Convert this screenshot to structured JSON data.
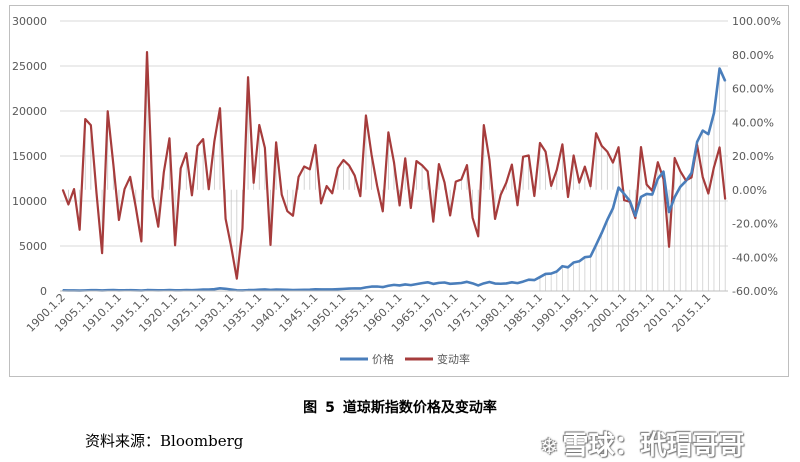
{
  "caption": {
    "figure_label": "图",
    "figure_number": "5",
    "title": "道琼斯指数价格及变动率"
  },
  "source": "资料来源：Bloomberg",
  "watermark": {
    "logo_icon": "snowball-logo-icon",
    "text": "雪球：玳瑁哥哥"
  },
  "chart_data": {
    "type": "line",
    "title": "",
    "xlabel": "",
    "ylabel": "",
    "ylim_left": [
      0,
      30000
    ],
    "ylim_right": [
      -0.6,
      1.0
    ],
    "y_ticks_left": [
      "0",
      "5000",
      "10000",
      "15000",
      "20000",
      "25000",
      "30000"
    ],
    "y_ticks_right": [
      "-60.00%",
      "-40.00%",
      "-20.00%",
      "0.00%",
      "20.00%",
      "40.00%",
      "60.00%",
      "80.00%",
      "100.00%"
    ],
    "x_tick_labels": [
      "1900.1.2",
      "1905.1.1",
      "1910.1.1",
      "1915.1.1",
      "1920.1.1",
      "1925.1.1",
      "1930.1.1",
      "1935.1.1",
      "1940.1.1",
      "1945.1.1",
      "1950.1.1",
      "1955.1.1",
      "1960.1.1",
      "1965.1.1",
      "1970.1.1",
      "1975.1.1",
      "1980.1.1",
      "1985.1.1",
      "1990.1.1",
      "1995.1.1",
      "2000.1.1",
      "2005.1.1",
      "2010.1.1",
      "2015.1.1"
    ],
    "grid": "horizontal",
    "legend_position": "bottom",
    "years": [
      1900,
      1901,
      1902,
      1903,
      1904,
      1905,
      1906,
      1907,
      1908,
      1909,
      1910,
      1911,
      1912,
      1913,
      1914,
      1915,
      1916,
      1917,
      1918,
      1919,
      1920,
      1921,
      1922,
      1923,
      1924,
      1925,
      1926,
      1927,
      1928,
      1929,
      1930,
      1931,
      1932,
      1933,
      1934,
      1935,
      1936,
      1937,
      1938,
      1939,
      1940,
      1941,
      1942,
      1943,
      1944,
      1945,
      1946,
      1947,
      1948,
      1949,
      1950,
      1951,
      1952,
      1953,
      1954,
      1955,
      1956,
      1957,
      1958,
      1959,
      1960,
      1961,
      1962,
      1963,
      1964,
      1965,
      1966,
      1967,
      1968,
      1969,
      1970,
      1971,
      1972,
      1973,
      1974,
      1975,
      1976,
      1977,
      1978,
      1979,
      1980,
      1981,
      1982,
      1983,
      1984,
      1985,
      1986,
      1987,
      1988,
      1989,
      1990,
      1991,
      1992,
      1993,
      1994,
      1995,
      1996,
      1997,
      1998,
      1999,
      2000,
      2001,
      2002,
      2003,
      2004,
      2005,
      2006,
      2007,
      2008,
      2009,
      2010,
      2011,
      2012,
      2013,
      2014,
      2015,
      2016,
      2017,
      2018
    ],
    "series": [
      {
        "name": "价格",
        "axis": "left",
        "color": "#4a7ebb",
        "values": [
          71,
          64,
          65,
          49,
          69,
          96,
          94,
          59,
          86,
          99,
          81,
          82,
          88,
          79,
          54,
          99,
          95,
          74,
          82,
          107,
          72,
          81,
          99,
          96,
          120,
          156,
          157,
          202,
          300,
          248,
          164,
          78,
          60,
          99,
          104,
          144,
          180,
          121,
          155,
          150,
          131,
          111,
          119,
          136,
          152,
          193,
          177,
          181,
          177,
          200,
          235,
          269,
          292,
          281,
          404,
          488,
          500,
          436,
          584,
          679,
          616,
          731,
          652,
          763,
          874,
          969,
          786,
          905,
          944,
          800,
          839,
          890,
          1020,
          851,
          616,
          852,
          1005,
          831,
          805,
          839,
          964,
          875,
          1047,
          1259,
          1212,
          1547,
          1896,
          1939,
          2169,
          2753,
          2634,
          3169,
          3301,
          3754,
          3834,
          5117,
          6448,
          7908,
          9181,
          11497,
          10787,
          10022,
          8342,
          10454,
          10783,
          10718,
          12463,
          13265,
          8776,
          10428,
          11578,
          12218,
          13104,
          16577,
          17823,
          17425,
          19763,
          24719,
          23327
        ]
      },
      {
        "name": "变动率",
        "axis": "right",
        "color": "#a63c3c",
        "values": [
          0.0,
          -0.087,
          0.004,
          -0.237,
          0.419,
          0.382,
          -0.019,
          -0.376,
          0.465,
          0.151,
          -0.179,
          0.004,
          0.076,
          -0.103,
          -0.306,
          0.816,
          -0.042,
          -0.219,
          0.105,
          0.305,
          -0.329,
          0.127,
          0.217,
          -0.033,
          0.26,
          0.3,
          0.003,
          0.287,
          0.483,
          -0.172,
          -0.338,
          -0.527,
          -0.23,
          0.667,
          0.041,
          0.384,
          0.248,
          -0.327,
          0.281,
          -0.029,
          -0.127,
          -0.154,
          0.076,
          0.138,
          0.121,
          0.265,
          -0.081,
          0.022,
          -0.021,
          0.129,
          0.176,
          0.144,
          0.084,
          -0.038,
          0.44,
          0.208,
          0.023,
          -0.128,
          0.34,
          0.162,
          -0.093,
          0.186,
          -0.108,
          0.17,
          0.145,
          0.109,
          -0.189,
          0.152,
          0.043,
          -0.152,
          0.048,
          0.061,
          0.146,
          -0.166,
          -0.276,
          0.383,
          0.177,
          -0.173,
          -0.031,
          0.042,
          0.149,
          -0.092,
          0.196,
          0.203,
          -0.037,
          0.277,
          0.226,
          0.023,
          0.118,
          0.269,
          -0.043,
          0.203,
          0.042,
          0.137,
          0.021,
          0.335,
          0.26,
          0.226,
          0.161,
          0.252,
          -0.062,
          -0.071,
          -0.168,
          0.253,
          0.031,
          -0.006,
          0.163,
          0.064,
          -0.338,
          0.188,
          0.11,
          0.055,
          0.073,
          0.265,
          0.075,
          -0.022,
          0.134,
          0.251,
          -0.056
        ]
      }
    ]
  }
}
